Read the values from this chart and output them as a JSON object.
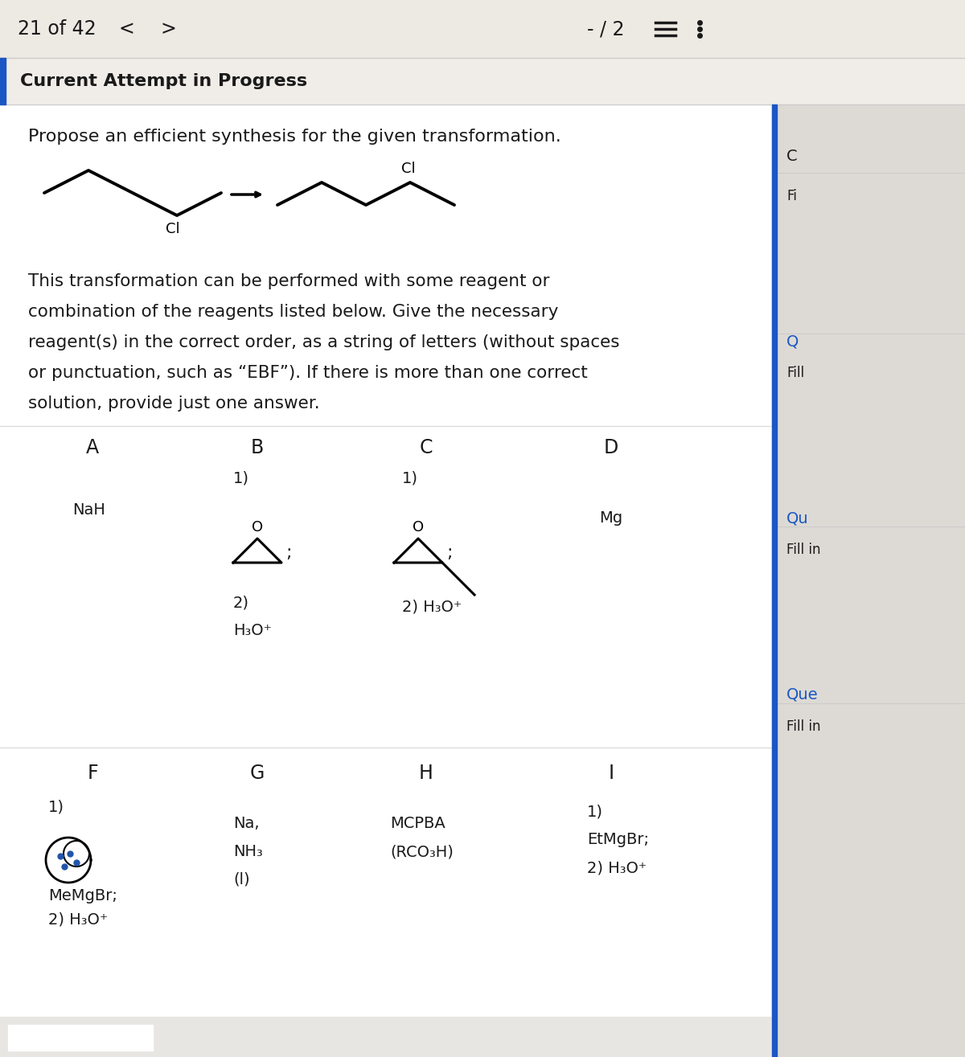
{
  "bg_color": "#ede9e3",
  "card_color": "#f8f7f5",
  "white_card": "#ffffff",
  "text_color": "#1a1a1a",
  "blue_color": "#1a56c4",
  "right_panel_bg": "#e8e5e0",
  "right_text_color": "#1a56c4",
  "header_text": "21 of 42",
  "score_text": "- / 2",
  "section_title": "Current Attempt in Progress",
  "question_text": "Propose an efficient synthesis for the given transformation.",
  "body_text_lines": [
    "This transformation can be performed with some reagent or",
    "combination of the reagents listed below. Give the necessary",
    "reagent(s) in the correct order, as a string of letters (without spaces",
    "or punctuation, such as “EBF”). If there is more than one correct",
    "solution, provide just one answer."
  ]
}
